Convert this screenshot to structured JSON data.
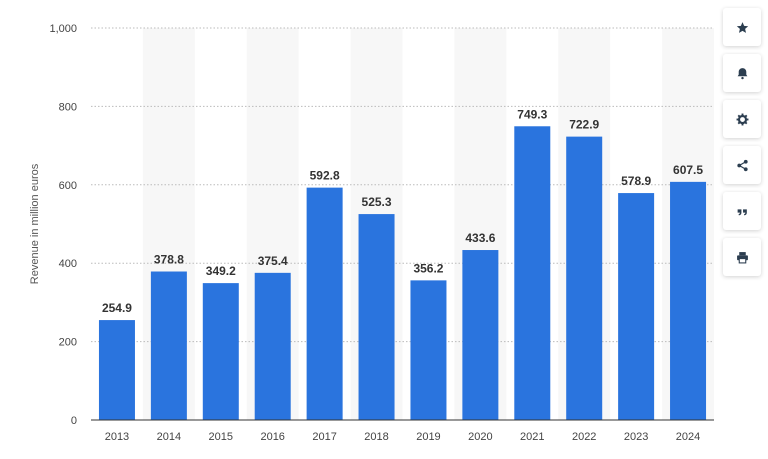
{
  "chart_data": {
    "type": "bar",
    "categories": [
      "2013",
      "2014",
      "2015",
      "2016",
      "2017",
      "2018",
      "2019",
      "2020",
      "2021",
      "2022",
      "2023",
      "2024"
    ],
    "values": [
      254.9,
      378.8,
      349.2,
      375.4,
      592.8,
      525.3,
      356.2,
      433.6,
      749.3,
      722.9,
      578.9,
      607.5
    ],
    "value_labels": [
      "254.9",
      "378.8",
      "349.2",
      "375.4",
      "592.8",
      "525.3",
      "356.2",
      "433.6",
      "749.3",
      "722.9",
      "578.9",
      "607.5"
    ],
    "title": "",
    "xlabel": "",
    "ylabel": "Revenue in million euros",
    "ylim": [
      0,
      1000
    ],
    "yticks": [
      "0",
      "200",
      "400",
      "600",
      "800",
      "1,000"
    ],
    "bar_color": "#2a74de",
    "grid": true,
    "alternating_bands": true
  },
  "toolbar": {
    "buttons": [
      {
        "name": "favorite-button",
        "icon": "star-icon"
      },
      {
        "name": "notification-button",
        "icon": "bell-icon"
      },
      {
        "name": "settings-button",
        "icon": "gear-icon"
      },
      {
        "name": "share-button",
        "icon": "share-icon"
      },
      {
        "name": "cite-button",
        "icon": "quote-icon"
      },
      {
        "name": "print-button",
        "icon": "printer-icon"
      }
    ]
  }
}
